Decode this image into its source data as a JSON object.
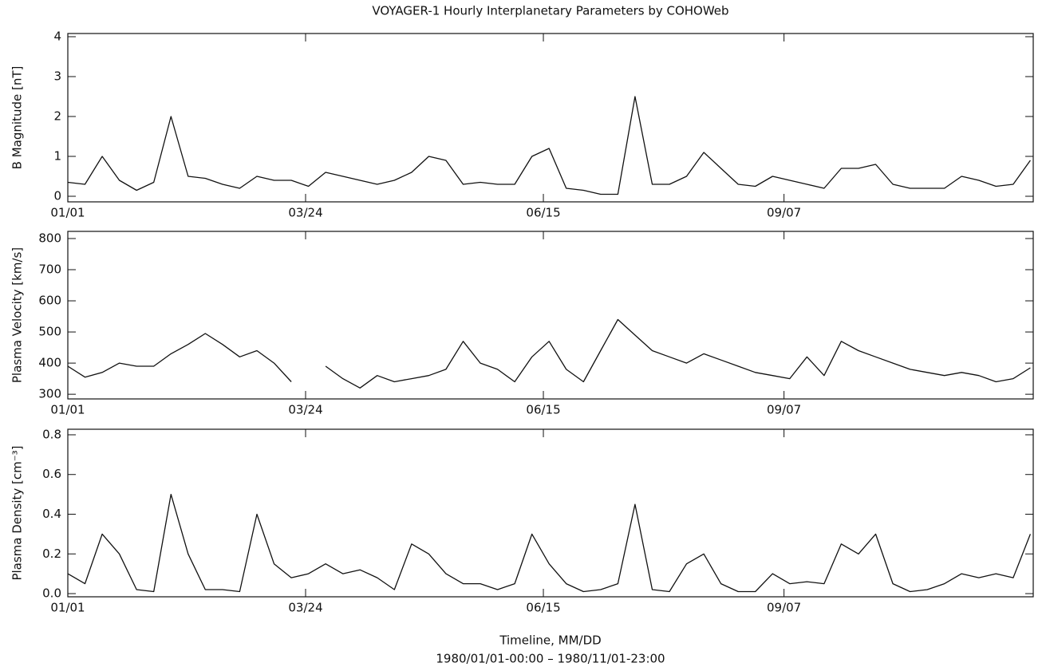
{
  "chart_data": [
    {
      "type": "line",
      "title": "VOYAGER-1 Hourly Interplanetary Parameters by COHOWeb",
      "ylabel": "B Magnitude [nT]",
      "x": [
        "1980-01-01",
        "1980-01-07",
        "1980-01-13",
        "1980-01-19",
        "1980-01-25",
        "1980-01-31",
        "1980-02-06",
        "1980-02-12",
        "1980-02-18",
        "1980-02-24",
        "1980-03-01",
        "1980-03-07",
        "1980-03-13",
        "1980-03-19",
        "1980-03-25",
        "1980-03-31",
        "1980-04-06",
        "1980-04-12",
        "1980-04-18",
        "1980-04-24",
        "1980-04-30",
        "1980-05-06",
        "1980-05-12",
        "1980-05-18",
        "1980-05-24",
        "1980-05-30",
        "1980-06-05",
        "1980-06-11",
        "1980-06-17",
        "1980-06-23",
        "1980-06-29",
        "1980-07-05",
        "1980-07-11",
        "1980-07-17",
        "1980-07-23",
        "1980-07-29",
        "1980-08-04",
        "1980-08-10",
        "1980-08-16",
        "1980-08-22",
        "1980-08-28",
        "1980-09-03",
        "1980-09-09",
        "1980-09-15",
        "1980-09-21",
        "1980-09-27",
        "1980-10-03",
        "1980-10-09",
        "1980-10-15",
        "1980-10-21",
        "1980-10-27",
        "1980-11-02",
        "1980-11-08",
        "1980-11-14",
        "1980-11-20",
        "1980-11-26",
        "1980-12-02"
      ],
      "values": [
        0.35,
        0.3,
        1.0,
        0.4,
        0.15,
        0.35,
        2.0,
        0.5,
        0.45,
        0.3,
        0.2,
        0.5,
        0.4,
        0.4,
        0.25,
        0.6,
        0.5,
        0.4,
        0.3,
        0.4,
        0.6,
        1.0,
        0.9,
        0.3,
        0.35,
        0.3,
        0.3,
        1.0,
        1.2,
        0.2,
        0.15,
        0.05,
        0.05,
        2.5,
        0.3,
        0.3,
        0.5,
        1.1,
        0.7,
        0.3,
        0.25,
        0.5,
        0.4,
        0.3,
        0.2,
        0.7,
        0.7,
        0.8,
        0.3,
        0.2,
        0.2,
        0.2,
        0.5,
        0.4,
        0.25,
        0.3,
        0.9
      ],
      "color": "#111111",
      "ylim": [
        -0.14,
        4.08
      ],
      "yticks": [
        0,
        1,
        2,
        3,
        4
      ],
      "xlim": [
        "1980-01-01",
        "1980-12-03"
      ],
      "xticks": [
        {
          "value": "1980-01-01",
          "label": "01/01"
        },
        {
          "value": "1980-03-24",
          "label": "03/24"
        },
        {
          "value": "1980-06-15",
          "label": "06/15"
        },
        {
          "value": "1980-09-07",
          "label": "09/07"
        }
      ]
    },
    {
      "type": "line",
      "ylabel": "Plasma Velocity [km/s]",
      "x": [
        "1980-01-01",
        "1980-01-07",
        "1980-01-13",
        "1980-01-19",
        "1980-01-25",
        "1980-01-31",
        "1980-02-06",
        "1980-02-12",
        "1980-02-18",
        "1980-02-24",
        "1980-03-01",
        "1980-03-07",
        "1980-03-13",
        "1980-03-19",
        "1980-03-25",
        "1980-03-31",
        "1980-04-06",
        "1980-04-12",
        "1980-04-18",
        "1980-04-24",
        "1980-04-30",
        "1980-05-06",
        "1980-05-12",
        "1980-05-18",
        "1980-05-24",
        "1980-05-30",
        "1980-06-05",
        "1980-06-11",
        "1980-06-17",
        "1980-06-23",
        "1980-06-29",
        "1980-07-05",
        "1980-07-11",
        "1980-07-17",
        "1980-07-23",
        "1980-07-29",
        "1980-08-04",
        "1980-08-10",
        "1980-08-16",
        "1980-08-22",
        "1980-08-28",
        "1980-09-03",
        "1980-09-09",
        "1980-09-15",
        "1980-09-21",
        "1980-09-27",
        "1980-10-03",
        "1980-10-09",
        "1980-10-15",
        "1980-10-21",
        "1980-10-27",
        "1980-11-02",
        "1980-11-08",
        "1980-11-14",
        "1980-11-20",
        "1980-11-26",
        "1980-12-02"
      ],
      "values": [
        390,
        355,
        370,
        400,
        390,
        390,
        430,
        460,
        495,
        460,
        420,
        440,
        400,
        340,
        null,
        390,
        350,
        320,
        360,
        340,
        350,
        360,
        380,
        470,
        400,
        380,
        340,
        420,
        470,
        380,
        340,
        440,
        540,
        490,
        440,
        420,
        400,
        430,
        410,
        390,
        370,
        360,
        350,
        420,
        360,
        470,
        440,
        420,
        400,
        380,
        370,
        360,
        370,
        360,
        340,
        350,
        385
      ],
      "color": "#111111",
      "ylim": [
        285,
        823
      ],
      "yticks": [
        300,
        400,
        500,
        600,
        700,
        800
      ],
      "xlim": [
        "1980-01-01",
        "1980-12-03"
      ],
      "xticks": [
        {
          "value": "1980-01-01",
          "label": "01/01"
        },
        {
          "value": "1980-03-24",
          "label": "03/24"
        },
        {
          "value": "1980-06-15",
          "label": "06/15"
        },
        {
          "value": "1980-09-07",
          "label": "09/07"
        }
      ]
    },
    {
      "type": "line",
      "ylabel": "Plasma Density [cm⁻³]",
      "xlabel": "Timeline, MM/DD",
      "subtitle": "1980/01/01-00:00 – 1980/11/01-23:00",
      "x": [
        "1980-01-01",
        "1980-01-07",
        "1980-01-13",
        "1980-01-19",
        "1980-01-25",
        "1980-01-31",
        "1980-02-06",
        "1980-02-12",
        "1980-02-18",
        "1980-02-24",
        "1980-03-01",
        "1980-03-07",
        "1980-03-13",
        "1980-03-19",
        "1980-03-25",
        "1980-03-31",
        "1980-04-06",
        "1980-04-12",
        "1980-04-18",
        "1980-04-24",
        "1980-04-30",
        "1980-05-06",
        "1980-05-12",
        "1980-05-18",
        "1980-05-24",
        "1980-05-30",
        "1980-06-05",
        "1980-06-11",
        "1980-06-17",
        "1980-06-23",
        "1980-06-29",
        "1980-07-05",
        "1980-07-11",
        "1980-07-17",
        "1980-07-23",
        "1980-07-29",
        "1980-08-04",
        "1980-08-10",
        "1980-08-16",
        "1980-08-22",
        "1980-08-28",
        "1980-09-03",
        "1980-09-09",
        "1980-09-15",
        "1980-09-21",
        "1980-09-27",
        "1980-10-03",
        "1980-10-09",
        "1980-10-15",
        "1980-10-21",
        "1980-10-27",
        "1980-11-02",
        "1980-11-08",
        "1980-11-14",
        "1980-11-20",
        "1980-11-26",
        "1980-12-02"
      ],
      "values": [
        0.1,
        0.05,
        0.3,
        0.2,
        0.02,
        0.01,
        0.5,
        0.2,
        0.02,
        0.02,
        0.01,
        0.4,
        0.15,
        0.08,
        0.1,
        0.15,
        0.1,
        0.12,
        0.08,
        0.02,
        0.25,
        0.2,
        0.1,
        0.05,
        0.05,
        0.02,
        0.05,
        0.3,
        0.15,
        0.05,
        0.01,
        0.02,
        0.05,
        0.45,
        0.02,
        0.01,
        0.15,
        0.2,
        0.05,
        0.01,
        0.01,
        0.1,
        0.05,
        0.06,
        0.05,
        0.25,
        0.2,
        0.3,
        0.05,
        0.01,
        0.02,
        0.05,
        0.1,
        0.08,
        0.1,
        0.08,
        0.3
      ],
      "color": "#111111",
      "ylim": [
        -0.016,
        0.828
      ],
      "yticks": [
        {
          "value": 0,
          "label": "0.0"
        },
        0.2,
        0.4,
        0.6,
        0.8
      ],
      "xlim": [
        "1980-01-01",
        "1980-12-03"
      ],
      "xticks": [
        {
          "value": "1980-01-01",
          "label": "01/01"
        },
        {
          "value": "1980-03-24",
          "label": "03/24"
        },
        {
          "value": "1980-06-15",
          "label": "06/15"
        },
        {
          "value": "1980-09-07",
          "label": "09/07"
        }
      ]
    }
  ]
}
